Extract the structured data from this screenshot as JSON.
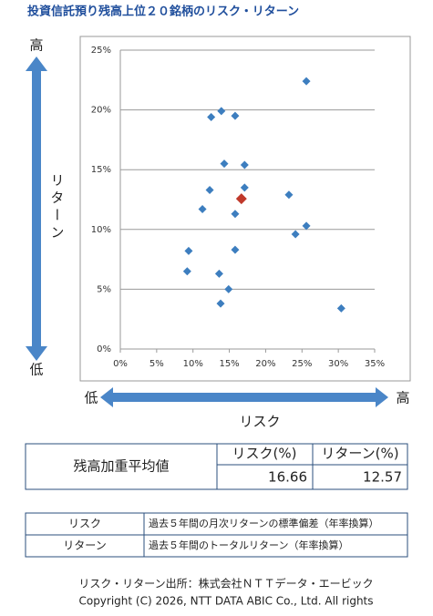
{
  "title": "投資信託預り残高上位２０銘柄のリスク・リターン",
  "chart_data": {
    "type": "scatter",
    "x_label": "リスク",
    "y_label": "リターン",
    "y_high": "高",
    "y_low": "低",
    "x_low": "低",
    "x_high": "高",
    "series": [
      {
        "color": "#3d7ebf",
        "x": [
          25.6,
          13.9,
          12.5,
          15.8,
          14.3,
          17.1,
          12.3,
          17.1,
          23.2,
          11.3,
          15.8,
          25.6,
          24.1,
          9.4,
          15.8,
          9.2,
          13.6,
          14.9,
          13.8,
          30.4
        ],
        "values": [
          22.4,
          19.9,
          19.4,
          19.5,
          15.5,
          15.4,
          13.3,
          13.5,
          12.9,
          11.7,
          11.3,
          10.3,
          9.6,
          8.2,
          8.3,
          6.5,
          6.3,
          5.0,
          3.8,
          3.4
        ]
      }
    ],
    "xlim": [
      0,
      35
    ],
    "ylim": [
      0,
      25
    ],
    "xticks": [
      {
        "value": 0,
        "label": "0%"
      },
      {
        "value": 5,
        "label": "5%"
      },
      {
        "value": 10,
        "label": "10%"
      },
      {
        "value": 15,
        "label": "15%"
      },
      {
        "value": 20,
        "label": "20%"
      },
      {
        "value": 25,
        "label": "25%"
      },
      {
        "value": 30,
        "label": "30%"
      },
      {
        "value": 35,
        "label": "35%"
      }
    ],
    "yticks": [
      {
        "value": 0,
        "label": "0%"
      },
      {
        "value": 5,
        "label": "5%"
      },
      {
        "value": 10,
        "label": "10%"
      },
      {
        "value": 15,
        "label": "15%"
      },
      {
        "value": 20,
        "label": "20%"
      },
      {
        "value": 25,
        "label": "25%"
      }
    ],
    "grid": true,
    "arrow_color": "#4a86c8"
  },
  "summary": {
    "label": "残高加重平均値",
    "headers": [
      "リスク(%)",
      "リターン(%)"
    ],
    "values": [
      16.66,
      12.57
    ],
    "color": "#c0392b"
  },
  "definitions": {
    "rows": [
      [
        "リスク",
        "過去５年間の月次リターンの標準偏差（年率換算）"
      ],
      [
        "リターン",
        "過去５年間のトータルリターン（年率換算）"
      ]
    ]
  },
  "footer": [
    "リスク・リターン出所：株式会社ＮＴＴデータ・エービック",
    "Copyright (C)  2026, NTT DATA ABIC Co., Ltd. All rights"
  ]
}
